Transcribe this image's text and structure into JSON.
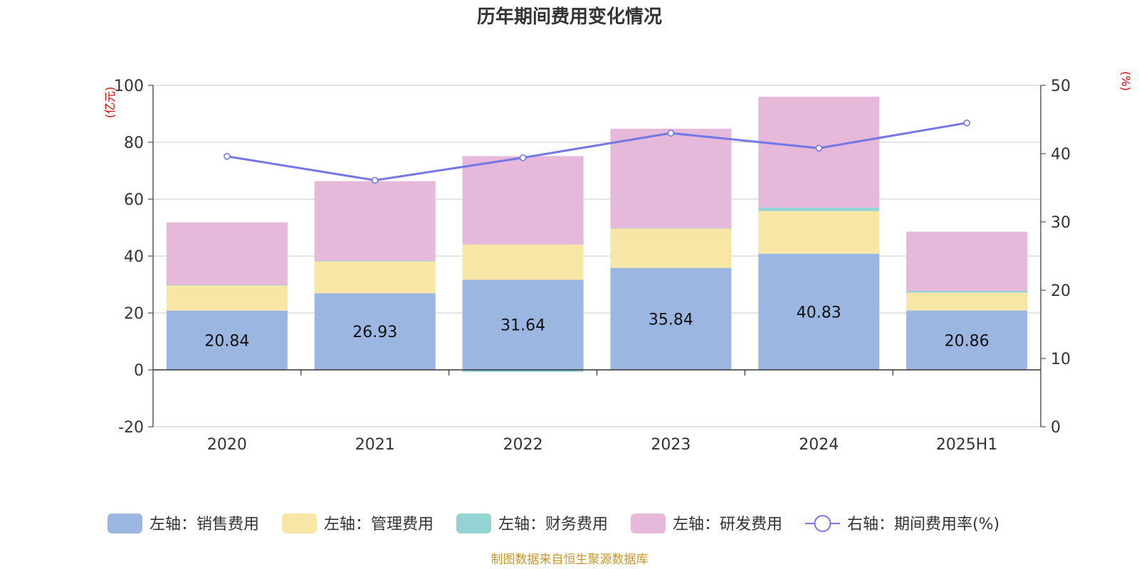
{
  "chart_data": {
    "type": "bar",
    "title": "历年期间费用变化情况",
    "categories": [
      "2020",
      "2021",
      "2022",
      "2023",
      "2024",
      "2025H1"
    ],
    "left_axis": {
      "unit": "(亿元)",
      "ylim": [
        -20,
        100
      ],
      "ticks": [
        -20,
        0,
        20,
        40,
        60,
        80,
        100
      ]
    },
    "right_axis": {
      "unit": "(%)",
      "ylim": [
        0,
        50
      ],
      "ticks": [
        0,
        10,
        20,
        30,
        40,
        50
      ]
    },
    "grid": true,
    "legend_placement": "bottom",
    "series": [
      {
        "name": "左轴：销售费用",
        "axis": "left",
        "kind": "bar",
        "color": "#9bb6e0",
        "values": [
          20.84,
          26.93,
          31.64,
          35.84,
          40.83,
          20.86
        ],
        "labels": [
          "20.84",
          "26.93",
          "31.64",
          "35.84",
          "40.83",
          "20.86"
        ]
      },
      {
        "name": "左轴：管理费用",
        "axis": "left",
        "kind": "bar",
        "color": "#f7e6a6",
        "values": [
          8.8,
          11.2,
          12.4,
          13.8,
          15.0,
          6.3
        ]
      },
      {
        "name": "左轴：财务费用",
        "axis": "left",
        "kind": "bar",
        "color": "#94d3d3",
        "values": [
          0.2,
          0.2,
          -0.7,
          0.2,
          1.2,
          0.6
        ]
      },
      {
        "name": "左轴：研发费用",
        "axis": "left",
        "kind": "bar",
        "color": "#e6b8d9",
        "values": [
          22.0,
          28.0,
          31.1,
          34.9,
          39.0,
          20.8
        ]
      },
      {
        "name": "右轴：期间费用率(%)",
        "axis": "right",
        "kind": "line",
        "color": "#7477e8",
        "values": [
          39.6,
          36.1,
          39.4,
          43.0,
          40.8,
          44.5
        ]
      }
    ],
    "source_note": "制图数据来自恒生聚源数据库"
  }
}
